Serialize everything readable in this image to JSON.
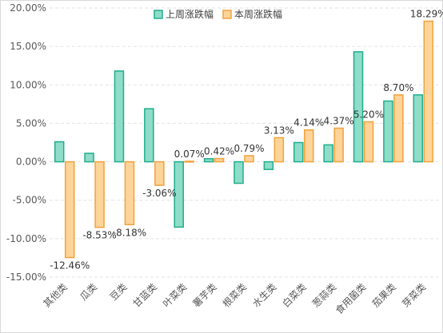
{
  "chart_data": {
    "type": "bar",
    "categories": [
      "其他类",
      "瓜类",
      "豆类",
      "甘蓝类",
      "叶菜类",
      "薯芋类",
      "根菜类",
      "水生类",
      "白菜类",
      "葱蒜类",
      "食用菌类",
      "茄果类",
      "芽菜类"
    ],
    "series": [
      {
        "name": "上周涨跌幅",
        "values": [
          2.6,
          1.1,
          11.8,
          6.9,
          -8.5,
          0.4,
          -2.8,
          -1.0,
          2.5,
          2.2,
          14.3,
          7.9,
          8.7
        ],
        "color": "#8fdcc9",
        "stroke": "#1fae8c"
      },
      {
        "name": "本周涨跌幅",
        "values": [
          -12.46,
          -8.53,
          -8.18,
          -3.06,
          0.07,
          0.42,
          0.79,
          3.13,
          4.14,
          4.37,
          5.2,
          8.7,
          18.29
        ],
        "labels": [
          "-12.46%",
          "-8.53%",
          "-8.18%",
          "-3.06%",
          "0.07%",
          "0.42%",
          "0.79%",
          "3.13%",
          "4.14%",
          "4.37%",
          "5.20%",
          "8.70%",
          "18.29%"
        ],
        "color": "#fdd49a",
        "stroke": "#f2a23c"
      }
    ],
    "y_ticks": [
      "20.00%",
      "15.00%",
      "10.00%",
      "5.00%",
      "0.00%",
      "-5.00%",
      "-10.00%",
      "-15.00%"
    ],
    "ylim": [
      -15,
      20
    ],
    "grid": true,
    "legend": "top-center"
  }
}
